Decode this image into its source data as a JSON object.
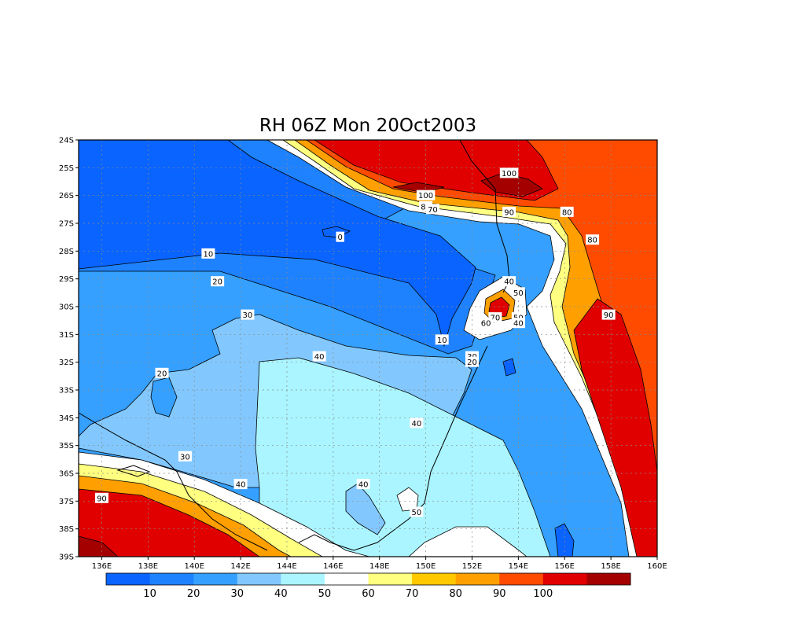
{
  "title": "RH 06Z Mon 20Oct2003",
  "map": {
    "lon_ticks": [
      "136E",
      "138E",
      "140E",
      "142E",
      "144E",
      "146E",
      "148E",
      "150E",
      "152E",
      "154E",
      "156E",
      "158E",
      "160E"
    ],
    "lat_ticks": [
      "24S",
      "25S",
      "26S",
      "27S",
      "28S",
      "29S",
      "30S",
      "31S",
      "32S",
      "33S",
      "34S",
      "35S",
      "36S",
      "37S",
      "38S",
      "39S"
    ],
    "lon_range": [
      135,
      160
    ],
    "lat_range": [
      -39,
      -24
    ],
    "grid": "dotted",
    "variable": "relative humidity"
  },
  "colors": {
    "bands": [
      "#0a64ff",
      "#1e82ff",
      "#35a0ff",
      "#82c8ff",
      "#aaf5ff",
      "#ffffff",
      "#ffff80",
      "#ffc800",
      "#ffa000",
      "#ff4b00",
      "#e10000",
      "#a50000"
    ],
    "contour": "#000000"
  },
  "colorbar": {
    "labels": [
      "10",
      "20",
      "30",
      "40",
      "50",
      "60",
      "70",
      "80",
      "90",
      "100"
    ],
    "placement": "bottom"
  },
  "contour_labels": [
    {
      "text": "100",
      "lon": 153.6,
      "lat": -25.2
    },
    {
      "text": "100",
      "lon": 150.0,
      "lat": -26.0
    },
    {
      "text": "80",
      "lon": 150.0,
      "lat": -26.4
    },
    {
      "text": "70",
      "lon": 150.3,
      "lat": -26.5
    },
    {
      "text": "90",
      "lon": 153.6,
      "lat": -26.6
    },
    {
      "text": "80",
      "lon": 156.1,
      "lat": -26.6
    },
    {
      "text": "80",
      "lon": 157.2,
      "lat": -27.6
    },
    {
      "text": "0",
      "lon": 146.3,
      "lat": -27.5
    },
    {
      "text": "10",
      "lon": 140.6,
      "lat": -28.1
    },
    {
      "text": "20",
      "lon": 141.0,
      "lat": -29.1
    },
    {
      "text": "40",
      "lon": 153.6,
      "lat": -29.1
    },
    {
      "text": "50",
      "lon": 154.0,
      "lat": -29.5
    },
    {
      "text": "30",
      "lon": 142.3,
      "lat": -30.3
    },
    {
      "text": "90",
      "lon": 157.9,
      "lat": -30.3
    },
    {
      "text": "70",
      "lon": 153.0,
      "lat": -30.4
    },
    {
      "text": "50",
      "lon": 154.0,
      "lat": -30.4
    },
    {
      "text": "60",
      "lon": 152.6,
      "lat": -30.6
    },
    {
      "text": "40",
      "lon": 154.0,
      "lat": -30.6
    },
    {
      "text": "10",
      "lon": 150.7,
      "lat": -31.2
    },
    {
      "text": "30",
      "lon": 152.0,
      "lat": -31.8
    },
    {
      "text": "20",
      "lon": 152.0,
      "lat": -32.0
    },
    {
      "text": "40",
      "lon": 145.4,
      "lat": -31.8
    },
    {
      "text": "20",
      "lon": 138.6,
      "lat": -32.4
    },
    {
      "text": "40",
      "lon": 149.6,
      "lat": -34.2
    },
    {
      "text": "30",
      "lon": 139.6,
      "lat": -35.4
    },
    {
      "text": "40",
      "lon": 142.0,
      "lat": -36.4
    },
    {
      "text": "40",
      "lon": 147.3,
      "lat": -36.4
    },
    {
      "text": "50",
      "lon": 149.6,
      "lat": -37.4
    },
    {
      "text": "90",
      "lon": 136.0,
      "lat": -36.9
    }
  ]
}
